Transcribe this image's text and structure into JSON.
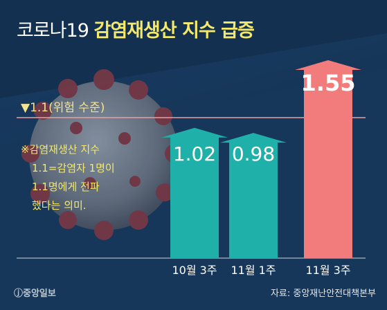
{
  "header": {
    "title_plain": "코로나19",
    "title_highlight": "감염재생산 지수 급증"
  },
  "threshold": {
    "label": "▼1.1(위험 수준)",
    "value": 1.1
  },
  "note": {
    "line1": "※감염재생산 지수",
    "line2": "1.1=감염자 1명이",
    "line3": "1.1명에게 전파",
    "line4": "했다는 의미."
  },
  "footer": {
    "brand": "ⓙ중앙일보",
    "source": "자료: 중앙재난안전대책본부"
  },
  "colors": {
    "background": "#16375a",
    "normal_bar": "#1fb1a9",
    "high_bar": "#f27c7b",
    "title_highlight": "#f4e96a",
    "threshold_line": "#e9a0a3"
  },
  "chart_data": {
    "type": "bar",
    "title": "감염재생산 지수 급증",
    "categories": [
      "10월 3주",
      "11월 1주",
      "11월 3주"
    ],
    "values": [
      1.02,
      0.98,
      1.55
    ],
    "value_labels": [
      "1.02",
      "0.98",
      "1.55"
    ],
    "bar_colors": [
      "#1fb1a9",
      "#1fb1a9",
      "#f27c7b"
    ],
    "threshold": 1.1,
    "ylim": [
      0,
      1.6
    ],
    "grid": false,
    "legend": "none"
  }
}
